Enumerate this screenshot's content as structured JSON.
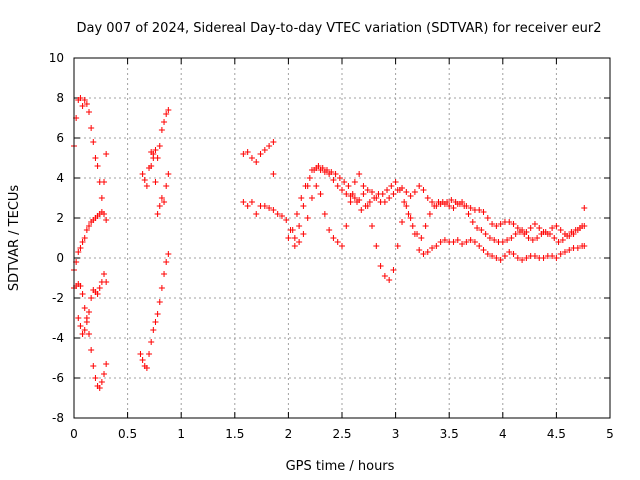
{
  "chart_data": {
    "type": "scatter",
    "title": "Day 007 of 2024, Sidereal Day-to-day VTEC variation (SDTVAR) for receiver eur2",
    "xlabel": "GPS time / hours",
    "ylabel": "SDTVAR / TECUs",
    "xlim": [
      0,
      5
    ],
    "ylim": [
      -8,
      10
    ],
    "xticks": [
      0,
      0.5,
      1,
      1.5,
      2,
      2.5,
      3,
      3.5,
      4,
      4.5,
      5
    ],
    "xtick_labels": [
      "0",
      "0.5",
      "1",
      "1.5",
      "2",
      "2.5",
      "3",
      "3.5",
      "4",
      "4.5",
      "5"
    ],
    "yticks": [
      -8,
      -6,
      -4,
      -2,
      0,
      2,
      4,
      6,
      8,
      10
    ],
    "ytick_labels": [
      "-8",
      "-6",
      "-4",
      "-2",
      "0",
      "2",
      "4",
      "6",
      "8",
      "10"
    ],
    "grid": true,
    "marker": "+",
    "marker_color": "#ff0000",
    "series": [
      {
        "name": "s1",
        "x": [
          0.0,
          0.02,
          0.04,
          0.06,
          0.08,
          0.1,
          0.12,
          0.14,
          0.16,
          0.18,
          0.2,
          0.22,
          0.24,
          0.26,
          0.28,
          0.3
        ],
        "y": [
          5.6,
          7.0,
          7.9,
          8.0,
          7.6,
          7.9,
          7.7,
          7.3,
          6.5,
          5.8,
          5.0,
          4.6,
          3.8,
          3.0,
          3.8,
          5.2
        ]
      },
      {
        "name": "s2",
        "x": [
          0.0,
          0.02,
          0.04,
          0.06,
          0.08,
          0.1,
          0.12,
          0.14,
          0.16,
          0.18,
          0.2,
          0.22,
          0.24,
          0.26,
          0.28,
          0.3
        ],
        "y": [
          -0.6,
          -0.2,
          0.3,
          0.5,
          0.8,
          1.0,
          1.4,
          1.6,
          1.8,
          1.9,
          2.0,
          2.1,
          2.2,
          2.3,
          2.2,
          1.9
        ]
      },
      {
        "name": "s3",
        "x": [
          0.0,
          0.02,
          0.04,
          0.06,
          0.08,
          0.1,
          0.12,
          0.14,
          0.16,
          0.18,
          0.2,
          0.22,
          0.24,
          0.26,
          0.28,
          0.3
        ],
        "y": [
          -1.5,
          -1.4,
          -1.3,
          -1.4,
          -1.8,
          -2.5,
          -3.0,
          -2.7,
          -2.0,
          -1.6,
          -1.7,
          -1.8,
          -1.5,
          -1.2,
          -0.8,
          -1.2
        ]
      },
      {
        "name": "s4",
        "x": [
          0.04,
          0.06,
          0.08,
          0.1,
          0.12,
          0.14,
          0.16,
          0.18,
          0.2,
          0.22,
          0.24,
          0.26,
          0.28,
          0.3
        ],
        "y": [
          -3.0,
          -3.4,
          -3.8,
          -3.6,
          -3.2,
          -3.8,
          -4.6,
          -5.4,
          -6.0,
          -6.4,
          -6.5,
          -6.2,
          -5.8,
          -5.3
        ]
      },
      {
        "name": "s5",
        "x": [
          0.62,
          0.64,
          0.66,
          0.68,
          0.7,
          0.72,
          0.74,
          0.76,
          0.78,
          0.8,
          0.82,
          0.84,
          0.86,
          0.88
        ],
        "y": [
          -4.8,
          -5.1,
          -5.4,
          -5.5,
          -4.8,
          -4.2,
          -3.6,
          -3.2,
          -2.8,
          -2.2,
          -1.5,
          -0.8,
          -0.2,
          0.2
        ]
      },
      {
        "name": "s6",
        "x": [
          0.64,
          0.66,
          0.68,
          0.7,
          0.72,
          0.74,
          0.76,
          0.78,
          0.8,
          0.82,
          0.84,
          0.86,
          0.88
        ],
        "y": [
          4.2,
          3.9,
          3.6,
          4.5,
          5.3,
          5.0,
          3.8,
          2.2,
          2.6,
          3.0,
          2.8,
          3.6,
          4.2
        ]
      },
      {
        "name": "s7",
        "x": [
          0.72,
          0.74,
          0.76,
          0.78,
          0.8,
          0.82,
          0.84,
          0.86,
          0.88
        ],
        "y": [
          4.6,
          5.2,
          5.4,
          5.0,
          5.6,
          6.4,
          6.8,
          7.2,
          7.4
        ]
      },
      {
        "name": "s8",
        "x": [
          1.58,
          1.62,
          1.66,
          1.7,
          1.74,
          1.78,
          1.82,
          1.86,
          1.9,
          1.94,
          1.98,
          2.02,
          2.06,
          2.1,
          2.14,
          2.18,
          2.22,
          2.26,
          2.3,
          2.34,
          2.38,
          2.42,
          2.46,
          2.5,
          2.54,
          2.58,
          2.62,
          2.66,
          2.7,
          2.74,
          2.78,
          2.82,
          2.86,
          2.9,
          2.94,
          2.98,
          3.02,
          3.06,
          3.1,
          3.14,
          3.18,
          3.22,
          3.26,
          3.3,
          3.34,
          3.38,
          3.42,
          3.46,
          3.5,
          3.54,
          3.58,
          3.62,
          3.66,
          3.7,
          3.74,
          3.78,
          3.82,
          3.86,
          3.9,
          3.94,
          3.98,
          4.02,
          4.06,
          4.1,
          4.14,
          4.18,
          4.22,
          4.26,
          4.3,
          4.34,
          4.38,
          4.42,
          4.46,
          4.5,
          4.54,
          4.58,
          4.62,
          4.66,
          4.7,
          4.74,
          4.76
        ],
        "y": [
          2.8,
          2.6,
          2.8,
          2.2,
          2.6,
          2.6,
          2.5,
          2.4,
          2.2,
          2.1,
          1.9,
          1.4,
          1.0,
          1.6,
          2.6,
          3.6,
          4.4,
          4.5,
          4.4,
          4.3,
          4.2,
          3.9,
          3.6,
          3.4,
          3.2,
          3.1,
          3.0,
          2.9,
          3.2,
          3.4,
          3.3,
          3.0,
          2.8,
          2.8,
          3.0,
          3.2,
          3.4,
          3.5,
          3.3,
          3.1,
          3.3,
          3.6,
          3.4,
          3.0,
          2.8,
          2.6,
          2.7,
          2.7,
          2.6,
          2.5,
          2.7,
          2.8,
          2.6,
          2.5,
          2.4,
          2.4,
          2.3,
          2.0,
          1.7,
          1.6,
          1.7,
          1.8,
          1.8,
          1.7,
          1.5,
          1.4,
          1.3,
          1.5,
          1.7,
          1.5,
          1.3,
          1.2,
          1.5,
          1.6,
          1.4,
          1.2,
          1.1,
          1.2,
          1.4,
          1.6,
          2.5
        ]
      },
      {
        "name": "s9",
        "x": [
          1.58,
          1.62,
          1.66,
          1.7,
          1.74,
          1.78,
          1.82,
          1.86
        ],
        "y": [
          5.2,
          5.3,
          5.0,
          4.8,
          5.2,
          5.4,
          5.6,
          5.8
        ]
      },
      {
        "name": "s10",
        "x": [
          2.06,
          2.1,
          2.14,
          2.18,
          2.22,
          2.26,
          2.3,
          2.34,
          2.38,
          2.42,
          2.46,
          2.5,
          2.54,
          2.58,
          2.62,
          2.66,
          2.7,
          2.74,
          2.78,
          2.82,
          2.86,
          2.9,
          2.94,
          2.98,
          3.02,
          3.06,
          3.1,
          3.14,
          3.18,
          3.22,
          3.26,
          3.3,
          3.34,
          3.38,
          3.42,
          3.46,
          3.5,
          3.54,
          3.58,
          3.62,
          3.66,
          3.7,
          3.74,
          3.78,
          3.82,
          3.86,
          3.9,
          3.94,
          3.98,
          4.02,
          4.06,
          4.1,
          4.14,
          4.18,
          4.22,
          4.26,
          4.3,
          4.34,
          4.38,
          4.42,
          4.46,
          4.5,
          4.54,
          4.58,
          4.62,
          4.66,
          4.7,
          4.74,
          4.76
        ],
        "y": [
          0.6,
          0.8,
          1.2,
          2.0,
          3.0,
          3.6,
          3.2,
          2.2,
          1.4,
          1.0,
          0.8,
          0.6,
          1.6,
          2.8,
          3.8,
          4.2,
          3.6,
          2.6,
          1.6,
          0.6,
          -0.4,
          -0.9,
          -1.1,
          -0.6,
          0.6,
          1.8,
          2.6,
          2.0,
          1.2,
          0.4,
          0.2,
          0.3,
          0.5,
          0.6,
          0.8,
          0.9,
          0.8,
          0.8,
          0.9,
          0.7,
          0.8,
          0.9,
          0.8,
          0.6,
          0.4,
          0.2,
          0.1,
          0.0,
          -0.1,
          0.1,
          0.3,
          0.2,
          0.0,
          -0.1,
          0.0,
          0.1,
          0.1,
          0.0,
          0.0,
          0.1,
          0.1,
          0.0,
          0.2,
          0.3,
          0.4,
          0.5,
          0.5,
          0.6,
          0.6
        ]
      },
      {
        "name": "s11",
        "x": [
          1.86,
          2.0,
          2.04,
          2.08,
          2.12,
          2.16,
          2.2,
          2.24,
          2.28,
          2.32,
          2.36,
          2.4,
          2.44,
          2.48,
          2.52,
          2.56,
          2.6,
          2.64,
          2.68,
          2.72,
          2.76,
          2.8,
          2.84,
          2.88,
          2.92,
          2.96,
          3.0,
          3.04,
          3.08,
          3.12,
          3.16,
          3.2,
          3.24,
          3.28,
          3.32,
          3.36,
          3.4,
          3.44,
          3.48,
          3.52,
          3.56,
          3.6,
          3.64,
          3.68,
          3.72,
          3.76,
          3.8,
          3.84,
          3.88,
          3.92,
          3.96,
          4.0,
          4.04,
          4.08,
          4.12,
          4.16,
          4.2,
          4.24,
          4.28,
          4.32,
          4.36,
          4.4,
          4.44,
          4.48,
          4.52,
          4.56,
          4.6,
          4.64,
          4.68,
          4.72,
          4.76
        ],
        "y": [
          4.2,
          1.0,
          1.4,
          2.2,
          3.0,
          3.6,
          4.0,
          4.4,
          4.6,
          4.5,
          4.4,
          4.3,
          4.2,
          4.0,
          3.8,
          3.6,
          3.2,
          2.8,
          2.4,
          2.6,
          2.8,
          3.0,
          3.2,
          3.2,
          3.4,
          3.6,
          3.8,
          3.4,
          2.8,
          2.2,
          1.6,
          1.2,
          1.0,
          1.6,
          2.2,
          2.6,
          2.8,
          2.8,
          2.8,
          2.9,
          2.8,
          2.7,
          2.6,
          2.2,
          1.8,
          1.5,
          1.4,
          1.2,
          1.0,
          0.9,
          0.8,
          0.8,
          0.9,
          1.0,
          1.2,
          1.3,
          1.2,
          1.0,
          0.9,
          1.0,
          1.2,
          1.3,
          1.2,
          1.0,
          0.8,
          0.9,
          1.1,
          1.3,
          1.4,
          1.5,
          1.6
        ]
      }
    ]
  }
}
